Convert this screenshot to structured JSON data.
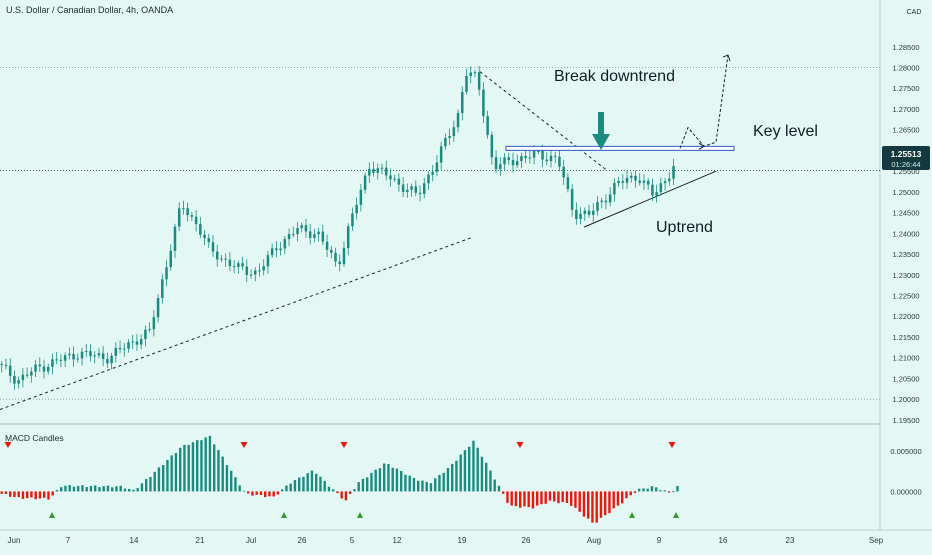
{
  "header": {
    "title": "U.S. Dollar / Canadian Dollar, 4h, OANDA",
    "currency": "CAD"
  },
  "price_badge": {
    "price": "1.25513",
    "countdown": "01:26:44"
  },
  "annotations": {
    "break_downtrend": "Break downtrend",
    "key_level": "Key level",
    "uptrend": "Uptrend"
  },
  "indicator": {
    "title": "MACD Candles"
  },
  "colors": {
    "background": "#e3f8f5",
    "up_candle": "#1b8b7e",
    "down_candle": "#1b8b7e",
    "macd_positive": "#1b8b7e",
    "macd_negative": "#e8180c",
    "arrow_down": "#e8180c",
    "arrow_up": "#2e9b2e",
    "key_level_line": "#3355cc",
    "price_badge": "#143a3f"
  },
  "chart_data": [
    {
      "type": "candlestick",
      "title": "U.S. Dollar / Canadian Dollar, 4h, OANDA",
      "y_axis_label": "CAD",
      "y_ticks": [
        "1.28500",
        "1.28000",
        "1.27500",
        "1.27000",
        "1.26500",
        "1.26000",
        "1.25500",
        "1.25000",
        "1.24500",
        "1.24000",
        "1.23500",
        "1.23000",
        "1.22500",
        "1.22000",
        "1.21500",
        "1.21000",
        "1.20500",
        "1.20000",
        "1.19500"
      ],
      "x_ticks": [
        "Jun",
        "7",
        "14",
        "21",
        "Jul",
        "26",
        "5",
        "12",
        "19",
        "26",
        "Aug",
        "9",
        "16",
        "23",
        "Sep"
      ],
      "ylim": [
        1.194,
        1.2905
      ],
      "key_level": 1.2605,
      "last_price": 1.25513,
      "path_anchors": [
        {
          "t": 0.0,
          "p": 1.2085
        },
        {
          "t": 0.05,
          "p": 1.2045
        },
        {
          "t": 0.1,
          "p": 1.2075
        },
        {
          "t": 0.2,
          "p": 1.211
        },
        {
          "t": 0.28,
          "p": 1.21
        },
        {
          "t": 0.33,
          "p": 1.2135
        },
        {
          "t": 0.38,
          "p": 1.216
        },
        {
          "t": 0.4,
          "p": 1.224
        },
        {
          "t": 0.46,
          "p": 1.247
        },
        {
          "t": 0.5,
          "p": 1.242
        },
        {
          "t": 0.53,
          "p": 1.236
        },
        {
          "t": 0.6,
          "p": 1.2315
        },
        {
          "t": 0.65,
          "p": 1.2305
        },
        {
          "t": 0.7,
          "p": 1.237
        },
        {
          "t": 0.75,
          "p": 1.241
        },
        {
          "t": 0.8,
          "p": 1.24
        },
        {
          "t": 0.85,
          "p": 1.232
        },
        {
          "t": 0.88,
          "p": 1.242
        },
        {
          "t": 0.93,
          "p": 1.2565
        },
        {
          "t": 0.98,
          "p": 1.2535
        },
        {
          "t": 1.05,
          "p": 1.249
        },
        {
          "t": 1.1,
          "p": 1.258
        },
        {
          "t": 1.15,
          "p": 1.268
        },
        {
          "t": 1.17,
          "p": 1.279
        },
        {
          "t": 1.2,
          "p": 1.277
        },
        {
          "t": 1.24,
          "p": 1.256
        },
        {
          "t": 1.3,
          "p": 1.258
        },
        {
          "t": 1.35,
          "p": 1.259
        },
        {
          "t": 1.4,
          "p": 1.258
        },
        {
          "t": 1.44,
          "p": 1.245
        },
        {
          "t": 1.48,
          "p": 1.2445
        },
        {
          "t": 1.55,
          "p": 1.252
        },
        {
          "t": 1.6,
          "p": 1.254
        },
        {
          "t": 1.64,
          "p": 1.249
        },
        {
          "t": 1.69,
          "p": 1.256
        }
      ],
      "candle_count": 160,
      "projection": [
        {
          "t": 1.7,
          "p": 1.2605
        },
        {
          "t": 1.72,
          "p": 1.2655
        },
        {
          "t": 1.76,
          "p": 1.261
        },
        {
          "t": 1.79,
          "p": 1.262
        },
        {
          "t": 1.82,
          "p": 1.283
        }
      ],
      "trendlines": [
        {
          "name": "long-uptrend",
          "style": "dashed",
          "from": {
            "t": 0.0,
            "p": 1.1975
          },
          "to": {
            "t": 1.18,
            "p": 1.239
          }
        },
        {
          "name": "downtrend",
          "style": "dashed",
          "from": {
            "t": 1.2,
            "p": 1.279
          },
          "to": {
            "t": 1.52,
            "p": 1.255
          }
        },
        {
          "name": "short-uptrend",
          "style": "solid",
          "from": {
            "t": 1.46,
            "p": 1.2415
          },
          "to": {
            "t": 1.79,
            "p": 1.255
          }
        }
      ]
    },
    {
      "type": "histogram",
      "title": "MACD Candles",
      "y_ticks": [
        "0.005000",
        "0.000000"
      ],
      "ylim": [
        -0.0045,
        0.0078
      ],
      "anchors": [
        {
          "t": 0.0,
          "v": -0.0003
        },
        {
          "t": 0.04,
          "v": -0.0008
        },
        {
          "t": 0.12,
          "v": -0.0009
        },
        {
          "t": 0.15,
          "v": 0.0007
        },
        {
          "t": 0.3,
          "v": 0.0006
        },
        {
          "t": 0.33,
          "v": 0.0001
        },
        {
          "t": 0.37,
          "v": 0.0018
        },
        {
          "t": 0.45,
          "v": 0.0055
        },
        {
          "t": 0.52,
          "v": 0.0068
        },
        {
          "t": 0.58,
          "v": 0.002
        },
        {
          "t": 0.61,
          "v": -0.0003
        },
        {
          "t": 0.68,
          "v": -0.0007
        },
        {
          "t": 0.72,
          "v": 0.001
        },
        {
          "t": 0.78,
          "v": 0.0026
        },
        {
          "t": 0.82,
          "v": 0.0006
        },
        {
          "t": 0.86,
          "v": -0.0012
        },
        {
          "t": 0.89,
          "v": 0.001
        },
        {
          "t": 0.96,
          "v": 0.0035
        },
        {
          "t": 1.03,
          "v": 0.0016
        },
        {
          "t": 1.07,
          "v": 0.001
        },
        {
          "t": 1.12,
          "v": 0.003
        },
        {
          "t": 1.18,
          "v": 0.0062
        },
        {
          "t": 1.23,
          "v": 0.0018
        },
        {
          "t": 1.27,
          "v": -0.0018
        },
        {
          "t": 1.33,
          "v": -0.002
        },
        {
          "t": 1.37,
          "v": -0.0012
        },
        {
          "t": 1.42,
          "v": -0.0015
        },
        {
          "t": 1.48,
          "v": -0.004
        },
        {
          "t": 1.54,
          "v": -0.0018
        },
        {
          "t": 1.59,
          "v": 0.0002
        },
        {
          "t": 1.63,
          "v": 0.0006
        },
        {
          "t": 1.67,
          "v": -0.0002
        },
        {
          "t": 1.7,
          "v": 0.001
        }
      ],
      "bar_count": 160,
      "sell_markers": [
        0.02,
        0.61,
        0.86,
        1.3,
        1.68
      ],
      "buy_markers": [
        0.13,
        0.71,
        0.9,
        1.58,
        1.69
      ]
    }
  ]
}
